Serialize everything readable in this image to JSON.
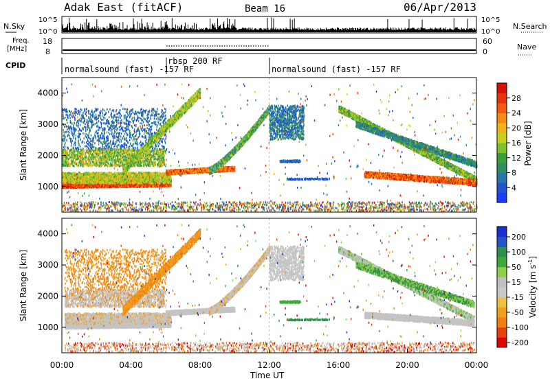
{
  "header": {
    "station": "Adak East (fitACF)",
    "beam": "Beam 16",
    "date": "06/Apr/2013"
  },
  "top_panels": {
    "nsky_label": "N.Sky",
    "nsearch_label": "N.Search",
    "count_ticks": [
      "10^5",
      "10^0"
    ],
    "freq_label_1": "Freq.",
    "freq_label_2": "[MHz]",
    "freq_ticks": [
      "18",
      "8"
    ],
    "nave_label": "Nave",
    "nave_ticks": [
      "60",
      "0"
    ],
    "cpid_label": "CPID"
  },
  "cpid_segments": [
    {
      "label": "normalsound (fast) -157 RF",
      "start_hour": 0,
      "end_hour": 6
    },
    {
      "label": "rbsp 200 RF",
      "start_hour": 6,
      "end_hour": 12
    },
    {
      "label": "normalsound (fast) -157 RF",
      "start_hour": 12,
      "end_hour": 24
    }
  ],
  "chart_data": [
    {
      "type": "heatmap",
      "parameter": "Power",
      "ylabel": "Slant Range [km]",
      "ylim": [
        180,
        4500
      ],
      "y_ticks": [
        1000,
        2000,
        3000,
        4000
      ],
      "xlim": [
        0,
        24
      ],
      "colorbar": {
        "label": "Power [dB]",
        "range": [
          0,
          32
        ],
        "ticks": [
          4,
          8,
          12,
          16,
          20,
          24,
          28
        ],
        "colors": [
          "#1a3cff",
          "#1f55d0",
          "#2a76a8",
          "#2f8f62",
          "#3aa13a",
          "#7ec22c",
          "#c9cf1e",
          "#f2b31a",
          "#f58a14",
          "#f25a10",
          "#e8340c",
          "#d80f08"
        ]
      },
      "bands": [
        {
          "range_km": [
            950,
            1100
          ],
          "start_hour": 0.2,
          "end_hour": 6,
          "power_db": 28
        },
        {
          "range_km": [
            1400,
            1550
          ],
          "start_hour": 6.5,
          "end_hour": 9.8,
          "power_db": 26
        },
        {
          "range_km": [
            1050,
            1250
          ],
          "start_hour": 17.5,
          "end_hour": 24,
          "power_db": 27
        }
      ]
    },
    {
      "type": "heatmap",
      "parameter": "Velocity",
      "ylabel": "Slant Range [km]",
      "ylim": [
        180,
        4500
      ],
      "y_ticks": [
        1000,
        2000,
        3000,
        4000
      ],
      "xlim": [
        0,
        24
      ],
      "x_ticks": [
        "00:00",
        "04:00",
        "08:00",
        "12:00",
        "16:00",
        "20:00",
        "00:00"
      ],
      "xlabel": "Time UT",
      "colorbar": {
        "label": "Velocity [m s",
        "label_exp": "-1",
        "ticks": [
          "200",
          "100",
          "50",
          "15",
          "-15",
          "-50",
          "-100",
          "-200"
        ],
        "colors": [
          "#1a2fd0",
          "#2554c8",
          "#2f8f4e",
          "#3fa83a",
          "#8fd04a",
          "#c0c0c0",
          "#c8c8c8",
          "#f0c040",
          "#f0a020",
          "#f08010",
          "#e84010",
          "#e00000"
        ]
      }
    }
  ]
}
